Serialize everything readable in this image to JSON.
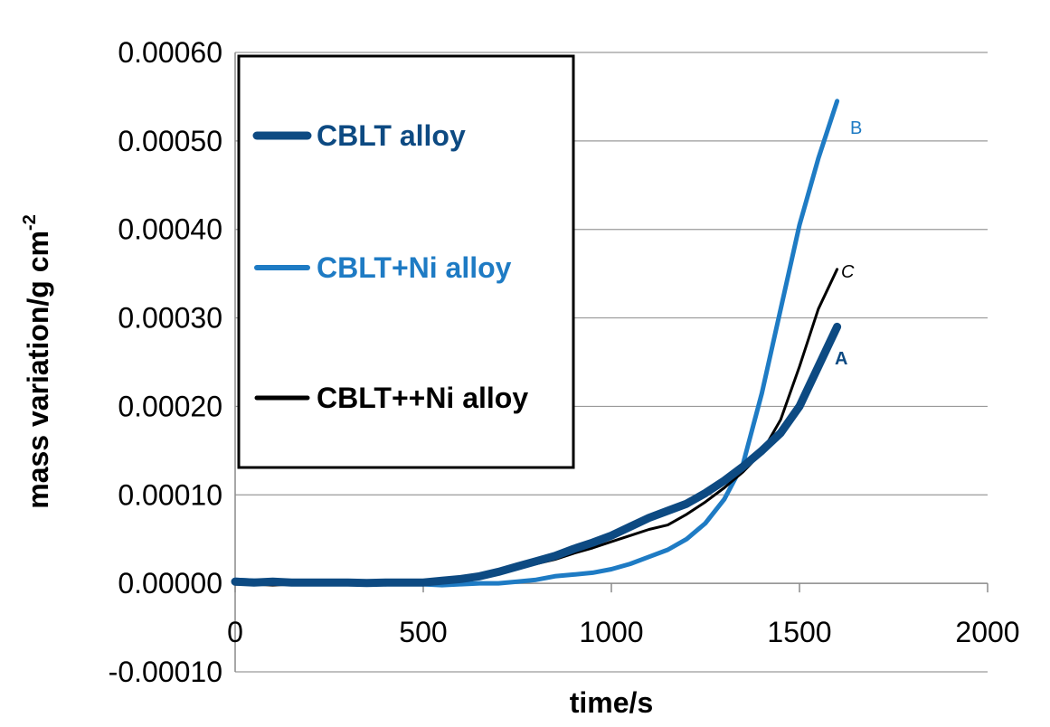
{
  "chart_data": {
    "type": "line",
    "title": "",
    "xlabel": "time/s",
    "ylabel_main": "mass variation/g cm",
    "ylabel_sup": "-2",
    "xlim": [
      0,
      2000
    ],
    "ylim": [
      -0.0001,
      0.0006
    ],
    "x_ticks": [
      "0",
      "500",
      "1000",
      "1500",
      "2000"
    ],
    "y_ticks": [
      "-0.00010",
      "0.00000",
      "0.00010",
      "0.00020",
      "0.00030",
      "0.00040",
      "0.00050",
      "0.00060"
    ],
    "grid": "horizontal",
    "legend_position": "upper-left",
    "series": [
      {
        "name": "CBLT alloy",
        "annotation": "A",
        "color": "#0D4A82",
        "x": [
          0,
          50,
          100,
          150,
          200,
          250,
          300,
          350,
          400,
          450,
          500,
          550,
          600,
          650,
          700,
          750,
          800,
          850,
          900,
          950,
          1000,
          1050,
          1100,
          1150,
          1200,
          1250,
          1300,
          1350,
          1400,
          1450,
          1500,
          1550,
          1600
        ],
        "y": [
          2e-06,
          1e-06,
          2e-06,
          1e-06,
          1e-06,
          1e-06,
          1e-06,
          5e-07,
          1e-06,
          1e-06,
          1e-06,
          3e-06,
          5e-06,
          8e-06,
          1.3e-05,
          1.9e-05,
          2.5e-05,
          3.1e-05,
          3.9e-05,
          4.6e-05,
          5.4e-05,
          6.4e-05,
          7.4e-05,
          8.2e-05,
          9e-05,
          0.000102,
          0.000116,
          0.000132,
          0.00015,
          0.00017,
          0.0002,
          0.000245,
          0.00029
        ]
      },
      {
        "name": "CBLT+Ni alloy",
        "annotation": "B",
        "color": "#1E7BC4",
        "x": [
          0,
          50,
          100,
          150,
          200,
          250,
          300,
          350,
          400,
          450,
          500,
          550,
          600,
          650,
          700,
          750,
          800,
          850,
          900,
          950,
          1000,
          1050,
          1100,
          1150,
          1200,
          1250,
          1300,
          1350,
          1400,
          1450,
          1500,
          1550,
          1600
        ],
        "y": [
          4e-06,
          3e-06,
          2e-06,
          2e-06,
          1e-06,
          5e-07,
          5e-07,
          1e-06,
          -1e-06,
          1e-06,
          -1e-06,
          -2e-06,
          -1e-06,
          0.0,
          0.0,
          2e-06,
          4e-06,
          8e-06,
          1e-05,
          1.2e-05,
          1.6e-05,
          2.2e-05,
          3e-05,
          3.8e-05,
          5e-05,
          6.8e-05,
          9.5e-05,
          0.000135,
          0.000215,
          0.00031,
          0.000405,
          0.00048,
          0.000545
        ]
      },
      {
        "name": "CBLT++Ni alloy",
        "annotation": "C",
        "color": "#000000",
        "x": [
          0,
          50,
          100,
          150,
          200,
          250,
          300,
          350,
          400,
          450,
          500,
          550,
          600,
          650,
          700,
          750,
          800,
          850,
          900,
          950,
          1000,
          1050,
          1100,
          1150,
          1200,
          1250,
          1300,
          1350,
          1400,
          1450,
          1500,
          1550,
          1600
        ],
        "y": [
          -1e-06,
          -1e-06,
          -2e-06,
          -1e-06,
          -1e-06,
          -1e-06,
          -5e-07,
          -1e-06,
          0.0,
          0.0,
          1e-06,
          2e-06,
          4e-06,
          8e-06,
          1.2e-05,
          1.7e-05,
          2.2e-05,
          2.7e-05,
          3.4e-05,
          4e-05,
          4.7e-05,
          5.4e-05,
          6.1e-05,
          6.6e-05,
          7.8e-05,
          9.2e-05,
          0.000108,
          0.000126,
          0.000148,
          0.000185,
          0.000245,
          0.00031,
          0.000355
        ]
      }
    ]
  }
}
